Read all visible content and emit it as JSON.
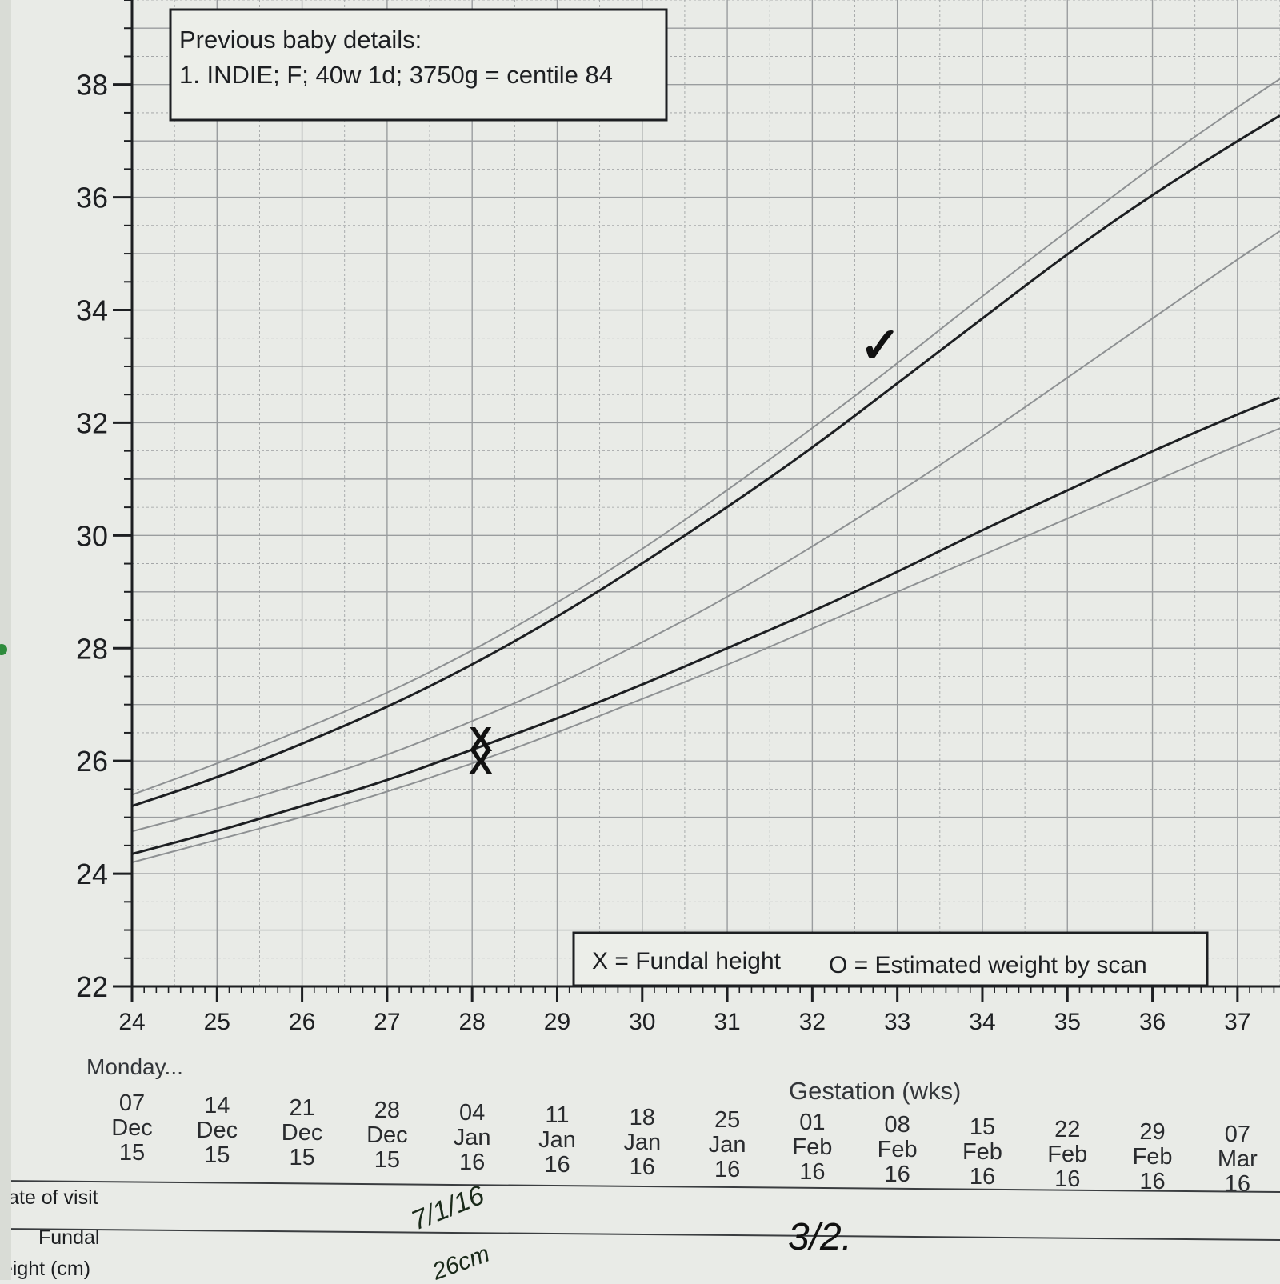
{
  "chart_data": {
    "type": "line",
    "xlabel": "Gestation (wks)",
    "ylabel": "",
    "xlim": [
      24,
      37.5
    ],
    "ylim": [
      22,
      39.5
    ],
    "x_ticks": [
      "24",
      "25",
      "26",
      "27",
      "28",
      "29",
      "30",
      "31",
      "32",
      "33",
      "34",
      "35",
      "36",
      "37"
    ],
    "y_ticks": [
      "22",
      "24",
      "26",
      "28",
      "30",
      "32",
      "34",
      "36",
      "38"
    ],
    "grid": true,
    "info_box": {
      "title": "Previous baby details:",
      "line": "1. INDIE; F; 40w 1d; 3750g = centile 84"
    },
    "legend": {
      "position": "bottom-right",
      "fundal": "X = Fundal height",
      "weight": "O = Estimated weight by scan"
    },
    "date_axis": {
      "label": "Monday...",
      "dates": [
        {
          "d": "07",
          "m": "Dec",
          "y": "15"
        },
        {
          "d": "14",
          "m": "Dec",
          "y": "15"
        },
        {
          "d": "21",
          "m": "Dec",
          "y": "15"
        },
        {
          "d": "28",
          "m": "Dec",
          "y": "15"
        },
        {
          "d": "04",
          "m": "Jan",
          "y": "16"
        },
        {
          "d": "11",
          "m": "Jan",
          "y": "16"
        },
        {
          "d": "18",
          "m": "Jan",
          "y": "16"
        },
        {
          "d": "25",
          "m": "Jan",
          "y": "16"
        },
        {
          "d": "01",
          "m": "Feb",
          "y": "16"
        },
        {
          "d": "08",
          "m": "Feb",
          "y": "16"
        },
        {
          "d": "15",
          "m": "Feb",
          "y": "16"
        },
        {
          "d": "22",
          "m": "Feb",
          "y": "16"
        },
        {
          "d": "29",
          "m": "Feb",
          "y": "16"
        },
        {
          "d": "07",
          "m": "Mar",
          "y": "16"
        }
      ]
    },
    "series": [
      {
        "x": [
          24,
          25,
          26,
          27,
          28,
          29,
          30,
          31,
          32,
          33,
          34,
          35,
          36,
          37,
          37.5
        ],
        "y": [
          25.4,
          25.95,
          26.55,
          27.2,
          27.95,
          28.8,
          29.75,
          30.8,
          31.9,
          33.05,
          34.25,
          35.4,
          36.55,
          37.6,
          38.1
        ]
      },
      {
        "x": [
          24,
          25,
          26,
          27,
          28,
          29,
          30,
          31,
          32,
          33,
          34,
          35,
          36,
          37,
          37.5
        ],
        "y": [
          25.2,
          25.7,
          26.3,
          26.95,
          27.7,
          28.55,
          29.5,
          30.5,
          31.55,
          32.7,
          33.85,
          35.0,
          36.05,
          37.0,
          37.45
        ]
      },
      {
        "x": [
          24,
          25,
          26,
          27,
          28,
          29,
          30,
          31,
          32,
          33,
          34,
          35,
          36,
          37,
          37.5
        ],
        "y": [
          24.75,
          25.15,
          25.6,
          26.1,
          26.7,
          27.35,
          28.1,
          28.9,
          29.8,
          30.75,
          31.75,
          32.8,
          33.85,
          34.9,
          35.4
        ]
      },
      {
        "x": [
          24,
          25,
          26,
          27,
          28,
          29,
          30,
          31,
          32,
          33,
          34,
          35,
          36,
          37,
          37.5
        ],
        "y": [
          24.35,
          24.75,
          25.2,
          25.65,
          26.2,
          26.75,
          27.35,
          28.0,
          28.65,
          29.35,
          30.1,
          30.8,
          31.5,
          32.15,
          32.45
        ]
      },
      {
        "x": [
          24,
          25,
          26,
          27,
          28,
          29,
          30,
          31,
          32,
          33,
          34,
          35,
          36,
          37,
          37.5
        ],
        "y": [
          24.2,
          24.6,
          25.0,
          25.45,
          25.95,
          26.5,
          27.1,
          27.7,
          28.35,
          29.0,
          29.65,
          30.3,
          30.95,
          31.6,
          31.9
        ]
      }
    ],
    "fundal_height_marks": [
      {
        "x": 28.1,
        "y": 26.0,
        "mark": "X"
      },
      {
        "x": 28.1,
        "y": 26.4,
        "mark": "X"
      },
      {
        "x": 32.8,
        "y": 33.3,
        "mark": "✓"
      }
    ],
    "visit_table": {
      "row_labels": [
        "Date of visit",
        "Fundal",
        "height (cm)"
      ],
      "handwritten_dates": [
        "7/1/16",
        "3/2."
      ],
      "handwritten_heights": [
        "26cm"
      ]
    }
  }
}
